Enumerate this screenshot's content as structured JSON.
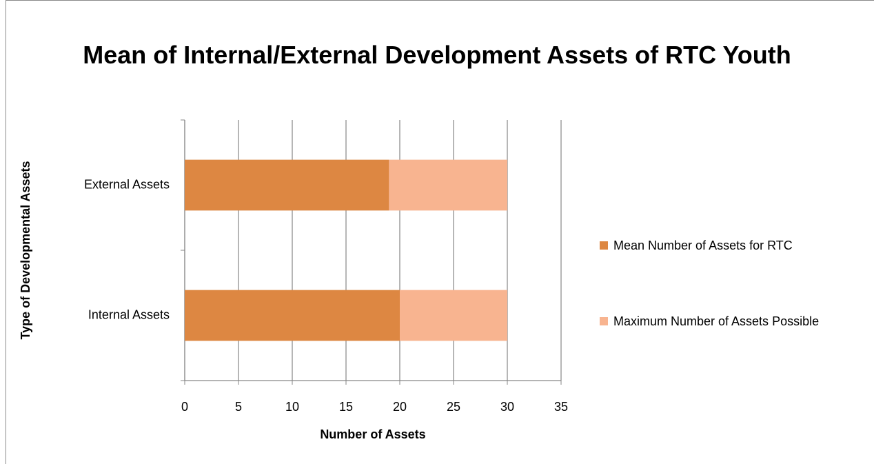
{
  "chart_data": {
    "type": "stacked_barh",
    "title": "Mean of Internal/External Development Assets of RTC Youth",
    "xlabel": "Number of Assets",
    "ylabel": "Type of Developmental Assets",
    "categories": [
      "Internal Assets",
      "External Assets"
    ],
    "series": [
      {
        "name": "Mean Number of Assets for RTC",
        "color": "#dd8742",
        "values": [
          20,
          19
        ]
      },
      {
        "name": "Maximum Number of Assets Possible",
        "color": "#f8b490",
        "values": [
          10,
          11
        ]
      }
    ],
    "xlim": [
      0,
      35
    ],
    "xticks": [
      0,
      5,
      10,
      15,
      20,
      25,
      30,
      35
    ],
    "grid": true,
    "legend": "right"
  }
}
